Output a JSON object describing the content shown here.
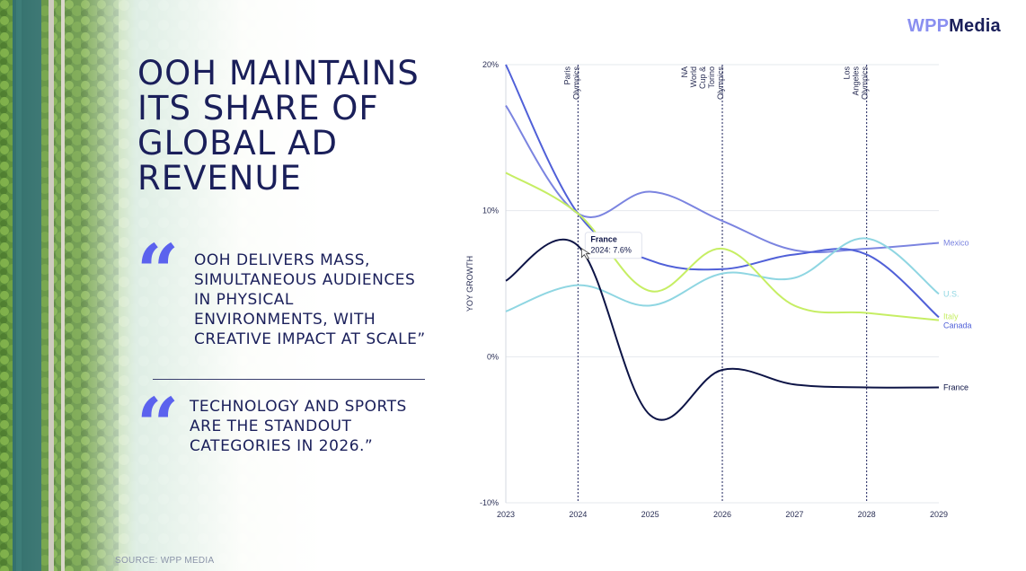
{
  "brand": {
    "logo_part1": "WPP",
    "logo_part2": "Media"
  },
  "headline": "OOH MAINTAINS\nITS SHARE OF\nGLOBAL AD\nREVENUE",
  "quotes": [
    {
      "mark": "“",
      "text": "OOH DELIVERS MASS,\nSIMULTANEOUS AUDIENCES\nIN PHYSICAL\nENVIRONMENTS, WITH\nCREATIVE IMPACT AT SCALE”"
    },
    {
      "mark": "“",
      "text": "TECHNOLOGY AND SPORTS\nARE THE STANDOUT\nCATEGORIES IN 2026.”"
    }
  ],
  "source": "SOURCE: WPP MEDIA",
  "colors": {
    "navy": "#1a1f5a",
    "accent_quote": "#5b62ee",
    "France": "#0d1446",
    "Mexico": "#7b84e0",
    "Canada": "#5060d8",
    "US": "#8fd6e2",
    "Italy": "#c6ee64"
  },
  "chart_data": {
    "type": "line",
    "ylabel": "YOY GROWTH",
    "xlabel": "",
    "x": [
      2023,
      2024,
      2025,
      2026,
      2027,
      2028,
      2029
    ],
    "ylim": [
      -10,
      20
    ],
    "yticks": [
      "20%",
      "10%",
      "0%",
      "-10%"
    ],
    "ytick_values": [
      20,
      10,
      0,
      -10
    ],
    "grid": true,
    "series": [
      {
        "name": "Mexico",
        "values": [
          17.2,
          9.8,
          11.3,
          9.3,
          7.3,
          7.4,
          7.8
        ]
      },
      {
        "name": "Canada",
        "values": [
          20.0,
          9.8,
          6.6,
          6.0,
          7.0,
          7.0,
          2.7
        ]
      },
      {
        "name": "U.S.",
        "values": [
          3.1,
          4.9,
          3.5,
          5.7,
          5.4,
          8.1,
          4.3
        ]
      },
      {
        "name": "Italy",
        "values": [
          12.6,
          9.8,
          4.5,
          7.4,
          3.5,
          3.0,
          2.5
        ]
      },
      {
        "name": "France",
        "values": [
          5.2,
          7.6,
          -4.0,
          -0.9,
          -1.9,
          -2.1,
          -2.1
        ]
      }
    ],
    "events": [
      {
        "x": 2024,
        "label": "Paris\nOlympics"
      },
      {
        "x": 2026,
        "label": "NA\nWorld\nCup &\nTorino\nOlympics"
      },
      {
        "x": 2028,
        "label": "Los\nAngeles\nOlympics"
      }
    ],
    "tooltip": {
      "series": "France",
      "x": 2024,
      "text": "France",
      "value_text": "2024: 7.6%"
    }
  }
}
